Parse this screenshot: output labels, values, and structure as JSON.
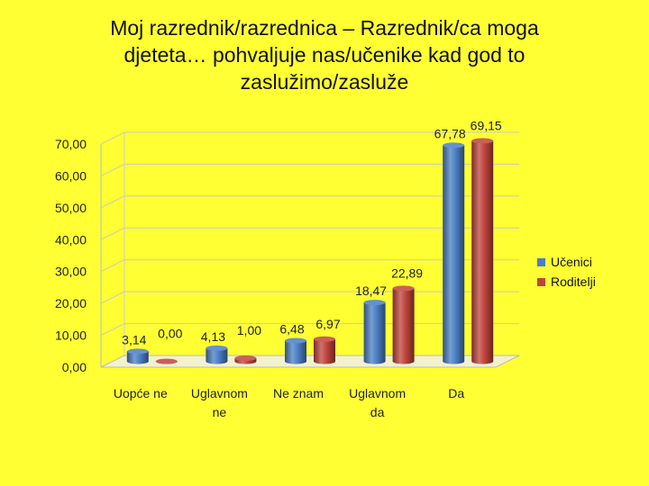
{
  "title_lines": [
    "Moj razrednik/razrednica – Razrednik/ca moga",
    "djeteta… pohvaljuje nas/učenike kad god to",
    "zaslužimo/zasluže"
  ],
  "colors": {
    "background": "#ffff33",
    "ucenici": "#4a7ec4",
    "roditelji": "#c0443c"
  },
  "chart_data": {
    "type": "bar",
    "title": "Moj razrednik/razrednica – Razrednik/ca moga djeteta… pohvaljuje nas/učenike kad god to zaslužimo/zasluže",
    "categories": [
      [
        "Uopće ne"
      ],
      [
        "Uglavnom",
        "ne"
      ],
      [
        "Ne znam"
      ],
      [
        "Uglavnom",
        "da"
      ],
      [
        "Da"
      ]
    ],
    "series": [
      {
        "name": "Učenici",
        "values": [
          3.14,
          4.13,
          6.48,
          18.47,
          67.78
        ],
        "labels": [
          "3,14",
          "4,13",
          "6,48",
          "18,47",
          "67,78"
        ]
      },
      {
        "name": "Roditelji",
        "values": [
          0.0,
          1.0,
          6.97,
          22.89,
          69.15
        ],
        "labels": [
          "0,00",
          "1,00",
          "6,97",
          "22,89",
          "69,15"
        ]
      }
    ],
    "yticks": [
      "0,00",
      "10,00",
      "20,00",
      "30,00",
      "40,00",
      "50,00",
      "60,00",
      "70,00"
    ],
    "ylim": [
      0,
      70
    ],
    "legend_position": "right",
    "grid": true
  }
}
